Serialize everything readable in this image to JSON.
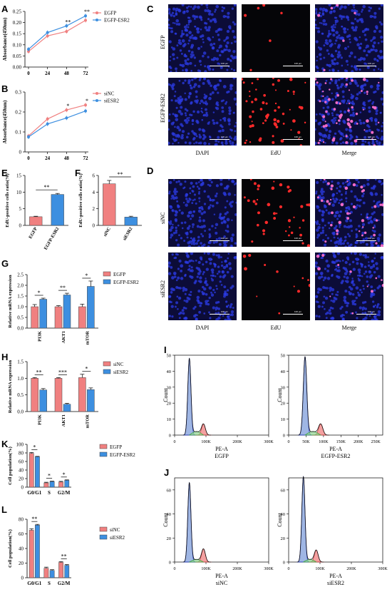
{
  "panels": {
    "A": "A",
    "B": "B",
    "C": "C",
    "D": "D",
    "E": "E",
    "F": "F",
    "G": "G",
    "H": "H",
    "I": "I",
    "J": "J",
    "K": "K",
    "L": "L"
  },
  "chart_data": [
    {
      "id": "A",
      "type": "line",
      "x": [
        0,
        24,
        48,
        72
      ],
      "ylabel": "Absorbance(450nm)",
      "ylim": [
        0,
        0.25
      ],
      "yticks": [
        "0.00",
        "0.05",
        "0.10",
        "0.15",
        "0.20",
        "0.25"
      ],
      "series": [
        {
          "name": "EGFP",
          "color": "#f08080",
          "values": [
            0.07,
            0.14,
            0.16,
            0.21
          ]
        },
        {
          "name": "EGFP-ESR2",
          "color": "#3d8fe0",
          "values": [
            0.08,
            0.155,
            0.185,
            0.23
          ]
        }
      ],
      "annotations": [
        {
          "x": 48,
          "text": "**"
        },
        {
          "x": 72,
          "text": "**"
        }
      ]
    },
    {
      "id": "B",
      "type": "line",
      "x": [
        0,
        24,
        48,
        72
      ],
      "ylabel": "Absorbance(450nm)",
      "ylim": [
        0,
        0.3
      ],
      "yticks": [
        "0",
        "0.1",
        "0.2",
        "0.3"
      ],
      "series": [
        {
          "name": "siNC",
          "color": "#f08080",
          "values": [
            0.08,
            0.165,
            0.21,
            0.235
          ]
        },
        {
          "name": "siESR2",
          "color": "#3d8fe0",
          "values": [
            0.075,
            0.14,
            0.17,
            0.205
          ]
        }
      ],
      "annotations": [
        {
          "x": 48,
          "text": "*"
        },
        {
          "x": 72,
          "text": "*"
        }
      ]
    },
    {
      "id": "E",
      "type": "bar",
      "categories": [
        "EGFP",
        "EGFP-ESR2"
      ],
      "values": [
        2.6,
        9.3
      ],
      "errors": [
        0.15,
        0.3
      ],
      "colors": [
        "#f08080",
        "#3d8fe0"
      ],
      "ylabel": "EdU-positive cells ratio(%)",
      "ylim": [
        0,
        15
      ],
      "yticks": [
        "0",
        "5",
        "10",
        "15"
      ],
      "sig": "**"
    },
    {
      "id": "F",
      "type": "bar",
      "categories": [
        "siNC",
        "siESR2"
      ],
      "values": [
        5.0,
        1.0
      ],
      "errors": [
        0.4,
        0.1
      ],
      "colors": [
        "#f08080",
        "#3d8fe0"
      ],
      "ylabel": "EdU-positive cells ratio(%)",
      "ylim": [
        0,
        6
      ],
      "yticks": [
        "0",
        "2",
        "4",
        "6"
      ],
      "sig": "**"
    },
    {
      "id": "G",
      "type": "bar",
      "categories": [
        "PI3K",
        "AKT1",
        "mTOR"
      ],
      "series": [
        {
          "name": "EGFP",
          "color": "#f08080",
          "values": [
            1.0,
            1.0,
            1.0
          ],
          "errors": [
            0.1,
            0.05,
            0.12
          ]
        },
        {
          "name": "EGFP-ESR2",
          "color": "#3d8fe0",
          "values": [
            1.35,
            1.55,
            1.95
          ],
          "errors": [
            0.05,
            0.08,
            0.25
          ]
        }
      ],
      "ylabel": "Relative mRNA expression",
      "ylim": [
        0,
        2.5
      ],
      "yticks": [
        "0.0",
        "0.5",
        "1.0",
        "1.5",
        "2.0",
        "2.5"
      ],
      "sig": [
        "*",
        "**",
        "*"
      ]
    },
    {
      "id": "H",
      "type": "bar",
      "categories": [
        "PI3K",
        "AKT1",
        "mTOR"
      ],
      "series": [
        {
          "name": "siNC",
          "color": "#f08080",
          "values": [
            1.0,
            1.0,
            1.02
          ],
          "errors": [
            0.02,
            0.02,
            0.1
          ]
        },
        {
          "name": "siESR2",
          "color": "#3d8fe0",
          "values": [
            0.65,
            0.22,
            0.66
          ],
          "errors": [
            0.04,
            0.03,
            0.05
          ]
        }
      ],
      "ylabel": "Relative mRNA expression",
      "ylim": [
        0,
        1.5
      ],
      "yticks": [
        "0.0",
        "0.5",
        "1.0",
        "1.5"
      ],
      "sig": [
        "**",
        "***",
        "*"
      ]
    },
    {
      "id": "K",
      "type": "bar",
      "categories": [
        "G0/G1",
        "S",
        "G2/M"
      ],
      "series": [
        {
          "name": "EGFP",
          "color": "#f08080",
          "values": [
            79,
            10,
            12
          ],
          "errors": [
            2,
            1.5,
            1.5
          ]
        },
        {
          "name": "EGFP-ESR2",
          "color": "#3d8fe0",
          "values": [
            71,
            13,
            16
          ],
          "errors": [
            1,
            1,
            1
          ]
        }
      ],
      "ylabel": "Cell population(%)",
      "ylim": [
        0,
        100
      ],
      "yticks": [
        "0",
        "20",
        "40",
        "60",
        "80",
        "100"
      ],
      "sig": [
        "*",
        "*",
        "*"
      ]
    },
    {
      "id": "L",
      "type": "bar",
      "categories": [
        "G0/G1",
        "S",
        "G2/M"
      ],
      "series": [
        {
          "name": "siNC",
          "color": "#f08080",
          "values": [
            65,
            13,
            21
          ],
          "errors": [
            2,
            1.5,
            1
          ]
        },
        {
          "name": "siESR2",
          "color": "#3d8fe0",
          "values": [
            72,
            10,
            17
          ],
          "errors": [
            1,
            1,
            1
          ]
        }
      ],
      "ylabel": "Cell population(%)",
      "ylim": [
        0,
        80
      ],
      "yticks": [
        "0",
        "20",
        "40",
        "60",
        "80"
      ],
      "sig": [
        "**",
        "",
        "**"
      ]
    },
    {
      "id": "I1",
      "type": "area",
      "xlabel": "PE-A",
      "caption": "EGFP",
      "ylabel": "Count",
      "ylim": [
        0,
        50
      ],
      "yticks": [
        "0",
        "10",
        "20",
        "30",
        "40",
        "50"
      ],
      "xlim": [
        0,
        300000
      ],
      "xticks": [
        "0",
        "100K",
        "200K",
        "300K"
      ],
      "xtick_values": [
        0,
        100000,
        200000,
        300000
      ],
      "peaks": [
        {
          "x": 47000,
          "height": 48
        },
        {
          "x": 92000,
          "height": 7
        }
      ]
    },
    {
      "id": "I2",
      "type": "area",
      "xlabel": "PE-A",
      "caption": "EGFP-ESR2",
      "ylabel": "Count",
      "ylim": [
        0,
        50
      ],
      "yticks": [
        "0",
        "10",
        "20",
        "30",
        "40",
        "50"
      ],
      "xlim": [
        0,
        270000
      ],
      "xticks": [
        "0",
        "50K",
        "100K",
        "150K",
        "200K",
        "250K"
      ],
      "xtick_values": [
        0,
        50000,
        100000,
        150000,
        200000,
        250000
      ],
      "peaks": [
        {
          "x": 47000,
          "height": 49
        },
        {
          "x": 92000,
          "height": 7
        }
      ]
    },
    {
      "id": "J1",
      "type": "area",
      "xlabel": "PE-A",
      "caption": "siNC",
      "ylabel": "Count",
      "ylim": [
        0,
        70
      ],
      "yticks": [
        "0",
        "20",
        "40",
        "60"
      ],
      "xlim": [
        0,
        300000
      ],
      "xticks": [
        "0",
        "100K",
        "200K",
        "300K"
      ],
      "xtick_values": [
        0,
        100000,
        200000,
        300000
      ],
      "peaks": [
        {
          "x": 47000,
          "height": 66
        },
        {
          "x": 92000,
          "height": 11
        }
      ]
    },
    {
      "id": "J2",
      "type": "area",
      "xlabel": "PE-A",
      "caption": "siESR2",
      "ylabel": "Count",
      "ylim": [
        0,
        70
      ],
      "yticks": [
        "0",
        "20",
        "40",
        "60"
      ],
      "xlim": [
        0,
        300000
      ],
      "xticks": [
        "0",
        "100K",
        "200K",
        "300K"
      ],
      "xtick_values": [
        0,
        100000,
        200000,
        300000
      ],
      "peaks": [
        {
          "x": 47000,
          "height": 71
        },
        {
          "x": 88000,
          "height": 10
        }
      ]
    }
  ],
  "microscopy": {
    "C": {
      "rows": [
        "EGFP",
        "EGFP-ESR2"
      ],
      "columns": [
        "DAPI",
        "EdU",
        "Merge"
      ],
      "scale_text": "100 μm",
      "red_density": [
        6,
        60
      ]
    },
    "D": {
      "rows": [
        "siNC",
        "siESR2"
      ],
      "columns": [
        "DAPI",
        "EdU",
        "Merge"
      ],
      "scale_text": "100 μm",
      "red_density": [
        40,
        12
      ]
    }
  }
}
